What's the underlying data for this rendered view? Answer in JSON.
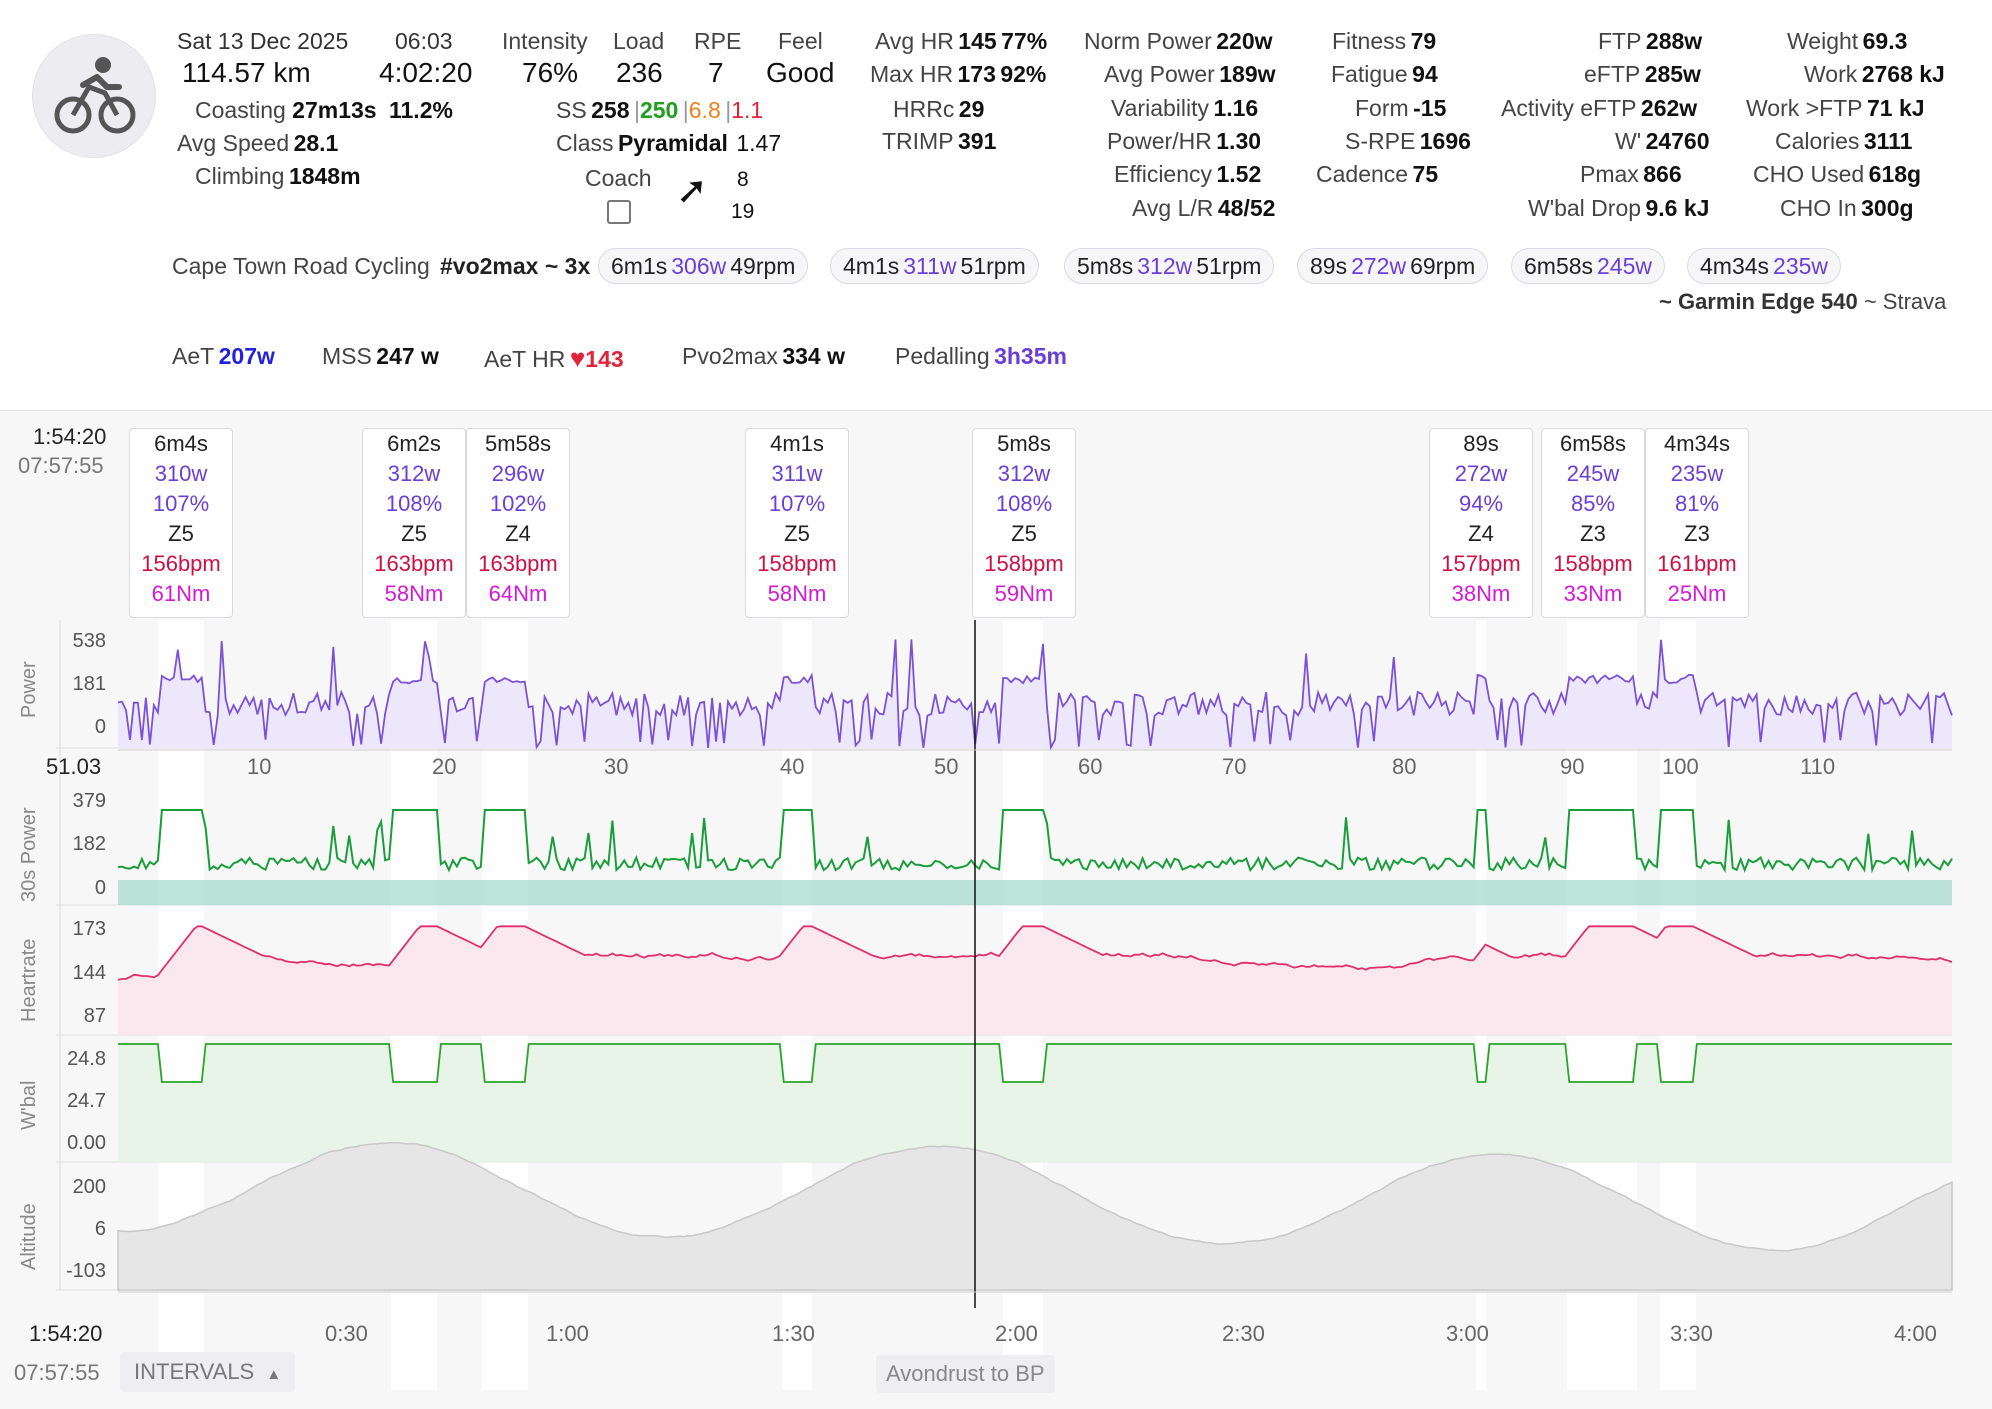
{
  "header": {
    "date": "Sat 13 Dec 2025",
    "time": "06:03",
    "distance": "114.57 km",
    "duration": "4:02:20",
    "intensity_label": "Intensity",
    "intensity": "76%",
    "load_label": "Load",
    "load": "236",
    "rpe_label": "RPE",
    "rpe": "7",
    "feel_label": "Feel",
    "feel": "Good",
    "coasting_label": "Coasting",
    "coasting": "27m13s",
    "coasting_pct": "11.2%",
    "avg_speed_label": "Avg Speed",
    "avg_speed": "28.1",
    "climbing_label": "Climbing",
    "climbing": "1848m",
    "ss_label": "SS",
    "ss": "258",
    "ss_a": "250",
    "ss_b": "6.8",
    "ss_c": "1.1",
    "sep": "|",
    "class_label": "Class",
    "class_value": "Pyramidal",
    "class_num": "1.47",
    "coach_label": "Coach",
    "trend_top": "8",
    "trend_bottom": "19",
    "arrow_glyph": "➚"
  },
  "hr_block": {
    "avg_hr_label": "Avg HR",
    "avg_hr": "145",
    "avg_hr_pct": "77%",
    "max_hr_label": "Max HR",
    "max_hr": "173",
    "max_hr_pct": "92%",
    "hrrc_label": "HRRc",
    "hrrc": "29",
    "trimp_label": "TRIMP",
    "trimp": "391"
  },
  "power_block": {
    "norm_power_label": "Norm Power",
    "norm_power": "220w",
    "avg_power_label": "Avg Power",
    "avg_power": "189w",
    "variability_label": "Variability",
    "variability": "1.16",
    "power_hr_label": "Power/HR",
    "power_hr": "1.30",
    "efficiency_label": "Efficiency",
    "efficiency": "1.52",
    "avg_lr_label": "Avg L/R",
    "avg_lr": "48/52"
  },
  "fitness_block": {
    "fitness_label": "Fitness",
    "fitness": "79",
    "fatigue_label": "Fatigue",
    "fatigue": "94",
    "form_label": "Form",
    "form": "-15",
    "srpe_label": "S-RPE",
    "srpe": "1696",
    "cadence_label": "Cadence",
    "cadence": "75"
  },
  "ftp_block": {
    "ftp_label": "FTP",
    "ftp": "288w",
    "eftp_label": "eFTP",
    "eftp": "285w",
    "activity_eftp_label": "Activity eFTP",
    "activity_eftp": "262w",
    "wprime_label": "W'",
    "wprime": "24760",
    "pmax_label": "Pmax",
    "pmax": "866",
    "wbal_drop_label": "W'bal Drop",
    "wbal_drop": "9.6 kJ"
  },
  "work_block": {
    "weight_label": "Weight",
    "weight": "69.3",
    "work_label": "Work",
    "work": "2768 kJ",
    "work_ftp_label": "Work >FTP",
    "work_ftp": "71 kJ",
    "calories_label": "Calories",
    "calories": "3111",
    "cho_used_label": "CHO Used",
    "cho_used": "618g",
    "cho_in_label": "CHO In",
    "cho_in": "300g"
  },
  "activity": {
    "name": "Cape Town Road Cycling",
    "tag": "#vo2max ~ 3x",
    "device": "~ Garmin Edge 540",
    "source": "~ Strava"
  },
  "pills": [
    {
      "dur": "6m1s",
      "watts": "306w",
      "rpm": "49rpm"
    },
    {
      "dur": "4m1s",
      "watts": "311w",
      "rpm": "51rpm"
    },
    {
      "dur": "5m8s",
      "watts": "312w",
      "rpm": "51rpm"
    },
    {
      "dur": "89s",
      "watts": "272w",
      "rpm": "69rpm"
    },
    {
      "dur": "6m58s",
      "watts": "245w",
      "rpm": ""
    },
    {
      "dur": "4m34s",
      "watts": "235w",
      "rpm": ""
    }
  ],
  "thresholds": {
    "aet_label": "AeT",
    "aet": "207w",
    "mss_label": "MSS",
    "mss": "247 w",
    "aet_hr_label": "AeT HR",
    "aet_hr": "143",
    "heart_glyph": "♥",
    "pvo2max_label": "Pvo2max",
    "pvo2max": "334 w",
    "pedalling_label": "Pedalling",
    "pedalling": "3h35m"
  },
  "cursor": {
    "elapsed": "1:54:20",
    "clock": "07:57:55",
    "distance_value": "51.03",
    "bottom_elapsed": "1:54:20",
    "bottom_clock": "07:57:55"
  },
  "intervals": [
    {
      "dur": "6m4s",
      "watts": "310w",
      "pct": "107%",
      "zone": "Z5",
      "hr": "156bpm",
      "torque": "61Nm"
    },
    {
      "dur": "6m2s",
      "watts": "312w",
      "pct": "108%",
      "zone": "Z5",
      "hr": "163bpm",
      "torque": "58Nm"
    },
    {
      "dur": "5m58s",
      "watts": "296w",
      "pct": "102%",
      "zone": "Z4",
      "hr": "163bpm",
      "torque": "64Nm"
    },
    {
      "dur": "4m1s",
      "watts": "311w",
      "pct": "107%",
      "zone": "Z5",
      "hr": "158bpm",
      "torque": "58Nm"
    },
    {
      "dur": "5m8s",
      "watts": "312w",
      "pct": "108%",
      "zone": "Z5",
      "hr": "158bpm",
      "torque": "59Nm"
    },
    {
      "dur": "89s",
      "watts": "272w",
      "pct": "94%",
      "zone": "Z4",
      "hr": "157bpm",
      "torque": "38Nm"
    },
    {
      "dur": "6m58s",
      "watts": "245w",
      "pct": "85%",
      "zone": "Z3",
      "hr": "158bpm",
      "torque": "33Nm"
    },
    {
      "dur": "4m34s",
      "watts": "235w",
      "pct": "81%",
      "zone": "Z3",
      "hr": "161bpm",
      "torque": "25Nm"
    }
  ],
  "charts": {
    "power": {
      "label": "Power",
      "ticks": [
        "538",
        "181",
        "0"
      ]
    },
    "power30": {
      "label": "30s Power",
      "ticks": [
        "379",
        "182",
        "0"
      ]
    },
    "hr": {
      "label": "Heartrate",
      "ticks": [
        "173",
        "144",
        "87"
      ]
    },
    "wbal": {
      "label": "W'bal",
      "ticks": [
        "24.8",
        "24.7",
        "0.00"
      ]
    },
    "altitude": {
      "label": "Altitude",
      "ticks": [
        "200",
        "6",
        "-103"
      ]
    },
    "distance_ticks": [
      "10",
      "20",
      "30",
      "40",
      "50",
      "60",
      "70",
      "80",
      "90",
      "100",
      "110"
    ],
    "time_ticks": [
      "0:30",
      "1:00",
      "1:30",
      "2:00",
      "2:30",
      "3:00",
      "3:30",
      "4:00"
    ]
  },
  "footer": {
    "intervals_label": "INTERVALS",
    "caret_glyph": "▲",
    "route": "Avondrust to BP"
  },
  "colors": {
    "power_line": "#7b52d6",
    "hr_line": "#e0306a",
    "wbal_line": "#2aa52a",
    "altitude_fill": "#e6e6e6"
  }
}
